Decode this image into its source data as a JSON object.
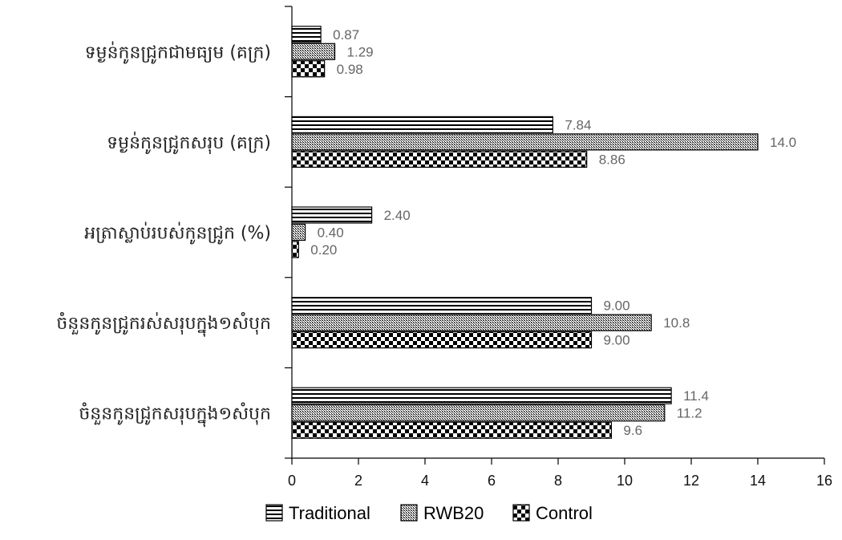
{
  "chart_data": {
    "type": "bar",
    "orientation": "horizontal",
    "categories": [
      "ទម្ងន់កូនជ្រូកជាមធ្យម (គក្រ)",
      "ទម្ងន់កូនជ្រូកសរុប (គក្រ)",
      "អត្រាស្លាប់របស់កូនជ្រូក (%)",
      "ចំនួនកូនជ្រូករស់សរុបក្នុង១សំបុក",
      "ចំនួនកូនជ្រូកសរុបក្នុង១សំបុក"
    ],
    "series": [
      {
        "name": "Traditional",
        "pattern": "horizontal-stripes",
        "values": [
          0.87,
          7.84,
          2.4,
          9.0,
          11.4
        ],
        "labels": [
          "0.87",
          "7.84",
          "2.40",
          "9.00",
          "11.4"
        ]
      },
      {
        "name": "RWB20",
        "pattern": "fine-crosshatch",
        "values": [
          1.29,
          14.0,
          0.4,
          10.8,
          11.2
        ],
        "labels": [
          "1.29",
          "14.0",
          "0.40",
          "10.8",
          "11.2"
        ]
      },
      {
        "name": "Control",
        "pattern": "checkerboard",
        "values": [
          0.98,
          8.86,
          0.2,
          9.0,
          9.6
        ],
        "labels": [
          "0.98",
          "8.86",
          "0.20",
          "9.00",
          "9.6"
        ]
      }
    ],
    "xlim": [
      0,
      16
    ],
    "xticks": [
      "0",
      "2",
      "4",
      "6",
      "8",
      "10",
      "12",
      "14",
      "16"
    ],
    "grid": false,
    "legend_position": "bottom",
    "colors": {
      "bar_fill": "#000000",
      "bar_background": "#ffffff",
      "axis": "#000000",
      "value_label": "#666666"
    }
  }
}
